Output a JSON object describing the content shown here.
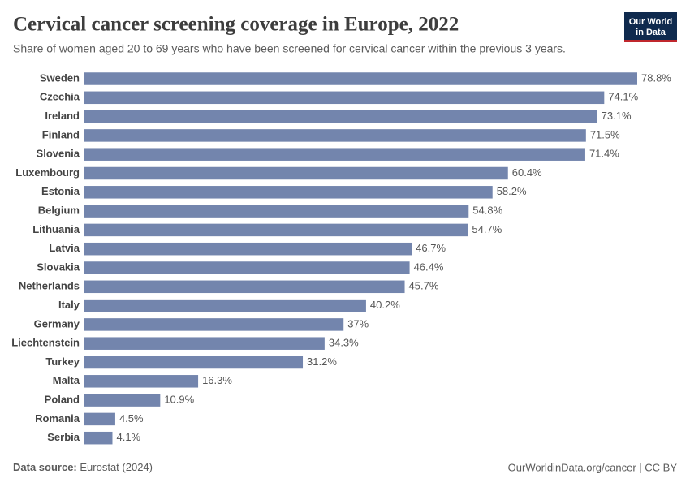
{
  "chart_data": {
    "type": "bar",
    "orientation": "horizontal",
    "title": "Cervical cancer screening coverage in Europe, 2022",
    "subtitle": "Share of women aged 20 to 69 years who have been screened for cervical cancer within the previous 3 years.",
    "categories": [
      "Sweden",
      "Czechia",
      "Ireland",
      "Finland",
      "Slovenia",
      "Luxembourg",
      "Estonia",
      "Belgium",
      "Lithuania",
      "Latvia",
      "Slovakia",
      "Netherlands",
      "Italy",
      "Germany",
      "Liechtenstein",
      "Turkey",
      "Malta",
      "Poland",
      "Romania",
      "Serbia"
    ],
    "values": [
      78.8,
      74.1,
      73.1,
      71.5,
      71.4,
      60.4,
      58.2,
      54.8,
      54.7,
      46.7,
      46.4,
      45.7,
      40.2,
      37,
      34.3,
      31.2,
      16.3,
      10.9,
      4.5,
      4.1
    ],
    "value_labels": [
      "78.8%",
      "74.1%",
      "73.1%",
      "71.5%",
      "71.4%",
      "60.4%",
      "58.2%",
      "54.8%",
      "54.7%",
      "46.7%",
      "46.4%",
      "45.7%",
      "40.2%",
      "37%",
      "34.3%",
      "31.2%",
      "16.3%",
      "10.9%",
      "4.5%",
      "4.1%"
    ],
    "color": "#7385ad"
  },
  "footer": {
    "source_label": "Data source:",
    "source": "Eurostat (2024)",
    "url": "OurWorldinData.org/cancer | CC BY"
  },
  "logo": {
    "line1": "Our World",
    "line2": "in Data"
  }
}
